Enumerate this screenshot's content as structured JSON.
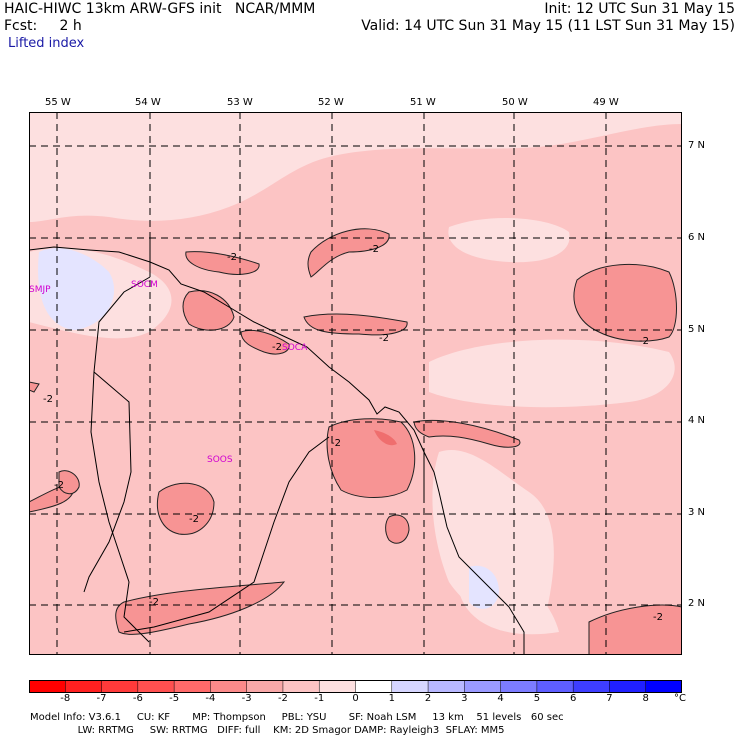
{
  "header": {
    "model": "HAIC-HIWC 13km ARW-GFS init   NCAR/MMM",
    "init": "Init: 12 UTC Sun 31 May 15",
    "fcst": "Fcst:     2 h",
    "valid": "Valid: 14 UTC Sun 31 May 15 (11 LST Sun 31 May 15)",
    "field": "Lifted index"
  },
  "lon_labels": [
    "55 W",
    "54 W",
    "53 W",
    "52 W",
    "51 W",
    "50 W",
    "49 W"
  ],
  "lat_labels": [
    "7 N",
    "6 N",
    "5 N",
    "4 N",
    "3 N",
    "2 N"
  ],
  "stations": [
    "SMJP",
    "SOCM",
    "SOCA",
    "SOOS"
  ],
  "contour_labels": [
    "-2",
    "-2",
    "-2",
    "-2",
    "-2",
    "-2",
    "-2",
    "-2",
    "-2",
    "-2",
    "-2"
  ],
  "colorbar": {
    "labels": [
      "-8",
      "-7",
      "-6",
      "-5",
      "-4",
      "-3",
      "-2",
      "-1",
      "0",
      "1",
      "2",
      "3",
      "4",
      "5",
      "6",
      "7",
      "8"
    ],
    "unit": "°C",
    "colors": [
      "#ff0000",
      "#ff2020",
      "#ff3a3a",
      "#ff5050",
      "#ff6a6a",
      "#fb8a8a",
      "#f8a8a8",
      "#fcc4c4",
      "#fde0e0",
      "#ffffff",
      "#d6d6ff",
      "#b8b8ff",
      "#9a9aff",
      "#7c7cff",
      "#5e5eff",
      "#3e3eff",
      "#2020ff",
      "#0000ff"
    ]
  },
  "footer": {
    "line1": "Model Info: V3.6.1     CU: KF       MP: Thompson     PBL: YSU       SF: Noah LSM     13 km    51 levels   60 sec",
    "line2": "               LW: RRTMG     SW: RRTMG   DIFF: full    KM: 2D Smagor DAMP: Rayleigh3  SFLAY: MM5"
  }
}
